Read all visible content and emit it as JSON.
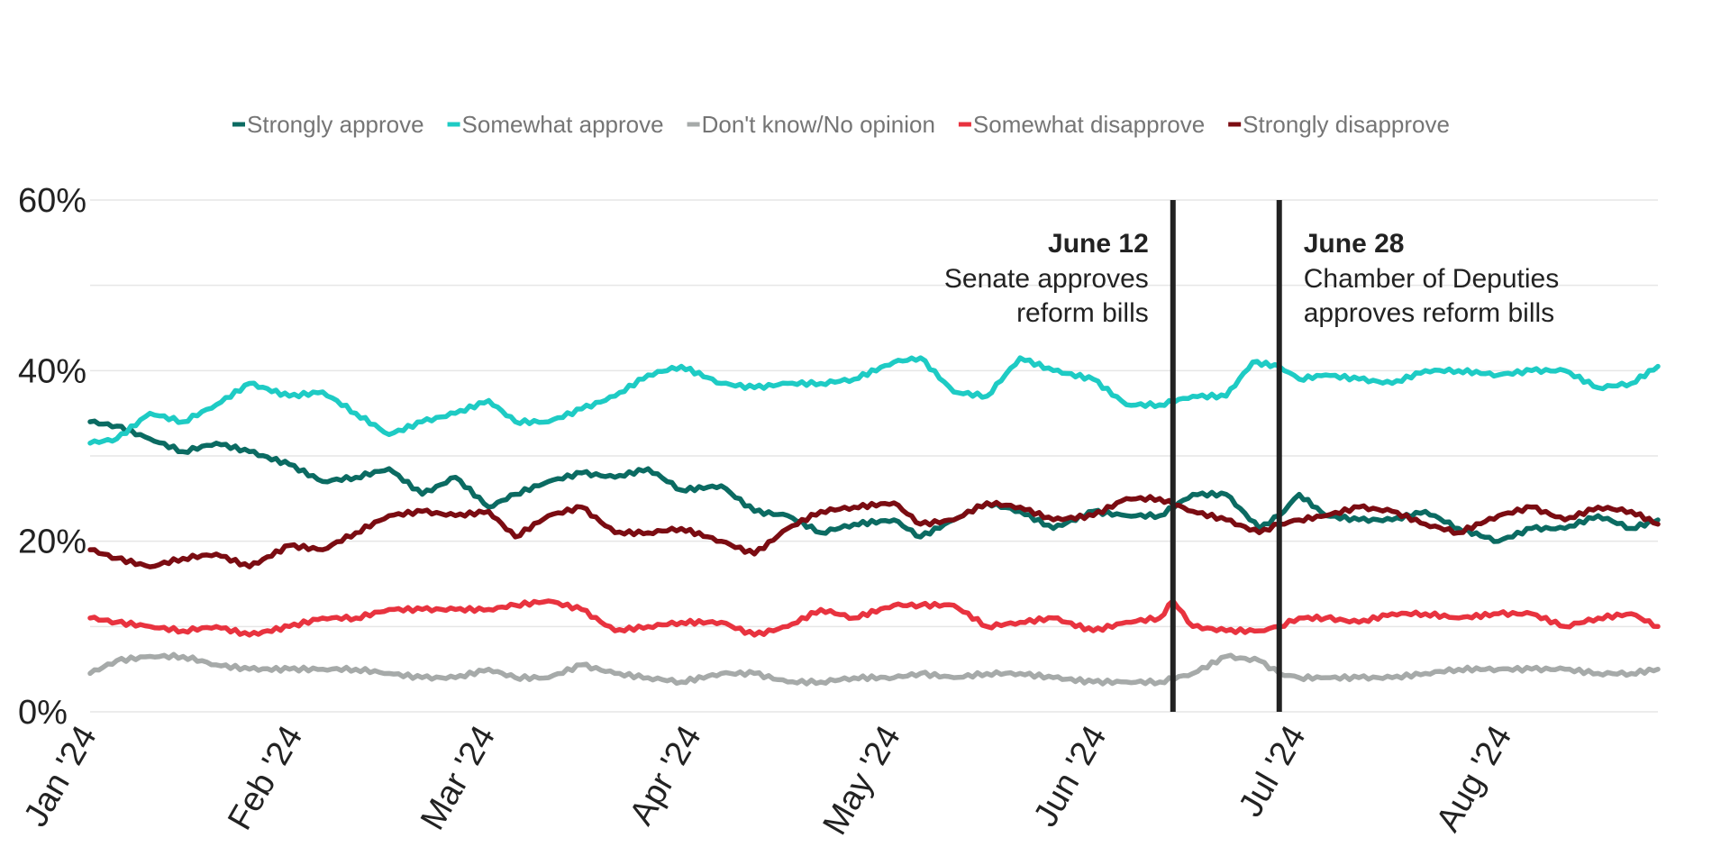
{
  "chart_data": {
    "type": "line",
    "title": "",
    "xlabel": "",
    "ylabel": "",
    "x_domain": [
      "2024-01-01",
      "2024-08-24"
    ],
    "ylim": [
      0,
      60
    ],
    "y_ticks": [
      0,
      20,
      40,
      60
    ],
    "y_tick_labels": [
      "0%",
      "20%",
      "40%",
      "60%"
    ],
    "x_tick_dates": [
      "2024-01-01",
      "2024-02-01",
      "2024-03-01",
      "2024-04-01",
      "2024-05-01",
      "2024-06-01",
      "2024-07-01",
      "2024-08-01"
    ],
    "x_tick_labels": [
      "Jan '24",
      "Feb '24",
      "Mar '24",
      "Apr '24",
      "May '24",
      "Jun '24",
      "Jul '24",
      "Aug '24"
    ],
    "grid": true,
    "legend_position": "top",
    "annotations": [
      {
        "date": "2024-06-12",
        "label": "June 12",
        "lines": [
          "Senate approves",
          "reform bills"
        ],
        "side": "left"
      },
      {
        "date": "2024-06-28",
        "label": "June 28",
        "lines": [
          "Chamber of Deputies",
          "approves reform bills"
        ],
        "side": "right"
      }
    ],
    "series": [
      {
        "name": "Strongly approve",
        "color": "#0b6b62",
        "points": [
          [
            "2024-01-01",
            34
          ],
          [
            "2024-01-05",
            33.5
          ],
          [
            "2024-01-10",
            32
          ],
          [
            "2024-01-15",
            30.5
          ],
          [
            "2024-01-20",
            31.5
          ],
          [
            "2024-01-25",
            30.5
          ],
          [
            "2024-01-31",
            29
          ],
          [
            "2024-02-05",
            27
          ],
          [
            "2024-02-10",
            27.5
          ],
          [
            "2024-02-15",
            28.5
          ],
          [
            "2024-02-20",
            25.5
          ],
          [
            "2024-02-25",
            27.5
          ],
          [
            "2024-03-01",
            24
          ],
          [
            "2024-03-05",
            25.5
          ],
          [
            "2024-03-10",
            27
          ],
          [
            "2024-03-15",
            28
          ],
          [
            "2024-03-20",
            27.5
          ],
          [
            "2024-03-25",
            28.5
          ],
          [
            "2024-03-30",
            26
          ],
          [
            "2024-04-05",
            26.5
          ],
          [
            "2024-04-10",
            23.5
          ],
          [
            "2024-04-15",
            23
          ],
          [
            "2024-04-20",
            21
          ],
          [
            "2024-04-25",
            22
          ],
          [
            "2024-05-01",
            22.5
          ],
          [
            "2024-05-05",
            20.5
          ],
          [
            "2024-05-10",
            22.5
          ],
          [
            "2024-05-15",
            24.5
          ],
          [
            "2024-05-20",
            23.5
          ],
          [
            "2024-05-25",
            21.5
          ],
          [
            "2024-05-31",
            23.5
          ],
          [
            "2024-06-05",
            23
          ],
          [
            "2024-06-10",
            23
          ],
          [
            "2024-06-15",
            25.5
          ],
          [
            "2024-06-20",
            25.5
          ],
          [
            "2024-06-25",
            21.5
          ],
          [
            "2024-06-28",
            23
          ],
          [
            "2024-07-01",
            25.5
          ],
          [
            "2024-07-05",
            23
          ],
          [
            "2024-07-10",
            22.5
          ],
          [
            "2024-07-15",
            22.5
          ],
          [
            "2024-07-20",
            23.5
          ],
          [
            "2024-07-25",
            21.5
          ],
          [
            "2024-07-31",
            20
          ],
          [
            "2024-08-05",
            21.5
          ],
          [
            "2024-08-10",
            21.5
          ],
          [
            "2024-08-15",
            23
          ],
          [
            "2024-08-20",
            21.5
          ],
          [
            "2024-08-24",
            22.5
          ]
        ]
      },
      {
        "name": "Somewhat approve",
        "color": "#1ecbc4",
        "points": [
          [
            "2024-01-01",
            31.5
          ],
          [
            "2024-01-05",
            32
          ],
          [
            "2024-01-10",
            35
          ],
          [
            "2024-01-15",
            34
          ],
          [
            "2024-01-20",
            36
          ],
          [
            "2024-01-25",
            38.5
          ],
          [
            "2024-01-31",
            37
          ],
          [
            "2024-02-05",
            37.5
          ],
          [
            "2024-02-10",
            35
          ],
          [
            "2024-02-15",
            32.5
          ],
          [
            "2024-02-20",
            34
          ],
          [
            "2024-02-25",
            35
          ],
          [
            "2024-03-01",
            36.5
          ],
          [
            "2024-03-05",
            34
          ],
          [
            "2024-03-10",
            34
          ],
          [
            "2024-03-15",
            35.5
          ],
          [
            "2024-03-20",
            37
          ],
          [
            "2024-03-25",
            39.5
          ],
          [
            "2024-03-30",
            40.5
          ],
          [
            "2024-04-05",
            38.5
          ],
          [
            "2024-04-10",
            38
          ],
          [
            "2024-04-15",
            38.5
          ],
          [
            "2024-04-20",
            38.5
          ],
          [
            "2024-04-25",
            39
          ],
          [
            "2024-05-01",
            41
          ],
          [
            "2024-05-05",
            41.5
          ],
          [
            "2024-05-10",
            37.5
          ],
          [
            "2024-05-15",
            37
          ],
          [
            "2024-05-20",
            41.5
          ],
          [
            "2024-05-25",
            40
          ],
          [
            "2024-05-31",
            39
          ],
          [
            "2024-06-05",
            36
          ],
          [
            "2024-06-10",
            36
          ],
          [
            "2024-06-15",
            37
          ],
          [
            "2024-06-20",
            37
          ],
          [
            "2024-06-24",
            41
          ],
          [
            "2024-06-28",
            40.5
          ],
          [
            "2024-07-01",
            39
          ],
          [
            "2024-07-05",
            39.5
          ],
          [
            "2024-07-10",
            39
          ],
          [
            "2024-07-15",
            38.5
          ],
          [
            "2024-07-20",
            40
          ],
          [
            "2024-07-25",
            40
          ],
          [
            "2024-07-31",
            39.5
          ],
          [
            "2024-08-05",
            40
          ],
          [
            "2024-08-10",
            40
          ],
          [
            "2024-08-15",
            38
          ],
          [
            "2024-08-20",
            38.5
          ],
          [
            "2024-08-24",
            40.5
          ]
        ]
      },
      {
        "name": "Don't know/No opinion",
        "color": "#a6aaa9",
        "points": [
          [
            "2024-01-01",
            4.5
          ],
          [
            "2024-01-05",
            6
          ],
          [
            "2024-01-10",
            6.5
          ],
          [
            "2024-01-15",
            6.5
          ],
          [
            "2024-01-20",
            5.5
          ],
          [
            "2024-01-25",
            5
          ],
          [
            "2024-01-31",
            5
          ],
          [
            "2024-02-05",
            5
          ],
          [
            "2024-02-10",
            5
          ],
          [
            "2024-02-15",
            4.5
          ],
          [
            "2024-02-20",
            4
          ],
          [
            "2024-02-25",
            4
          ],
          [
            "2024-03-01",
            5
          ],
          [
            "2024-03-05",
            4
          ],
          [
            "2024-03-10",
            4
          ],
          [
            "2024-03-15",
            5.5
          ],
          [
            "2024-03-20",
            4.5
          ],
          [
            "2024-03-25",
            4
          ],
          [
            "2024-03-30",
            3.5
          ],
          [
            "2024-04-05",
            4.5
          ],
          [
            "2024-04-10",
            4.5
          ],
          [
            "2024-04-15",
            3.5
          ],
          [
            "2024-04-20",
            3.5
          ],
          [
            "2024-04-25",
            4
          ],
          [
            "2024-05-01",
            4
          ],
          [
            "2024-05-05",
            4.5
          ],
          [
            "2024-05-10",
            4
          ],
          [
            "2024-05-15",
            4.5
          ],
          [
            "2024-05-20",
            4.5
          ],
          [
            "2024-05-25",
            4
          ],
          [
            "2024-05-31",
            3.5
          ],
          [
            "2024-06-05",
            3.5
          ],
          [
            "2024-06-10",
            3.5
          ],
          [
            "2024-06-15",
            4.5
          ],
          [
            "2024-06-20",
            6.5
          ],
          [
            "2024-06-25",
            6
          ],
          [
            "2024-06-28",
            4.5
          ],
          [
            "2024-07-01",
            4
          ],
          [
            "2024-07-05",
            4
          ],
          [
            "2024-07-10",
            4
          ],
          [
            "2024-07-15",
            4
          ],
          [
            "2024-07-20",
            4.5
          ],
          [
            "2024-07-25",
            5
          ],
          [
            "2024-07-31",
            5
          ],
          [
            "2024-08-05",
            5
          ],
          [
            "2024-08-10",
            5
          ],
          [
            "2024-08-15",
            4.5
          ],
          [
            "2024-08-20",
            4.5
          ],
          [
            "2024-08-24",
            5
          ]
        ]
      },
      {
        "name": "Somewhat disapprove",
        "color": "#e8333f",
        "points": [
          [
            "2024-01-01",
            11
          ],
          [
            "2024-01-05",
            10.5
          ],
          [
            "2024-01-10",
            10
          ],
          [
            "2024-01-15",
            9.5
          ],
          [
            "2024-01-20",
            10
          ],
          [
            "2024-01-25",
            9
          ],
          [
            "2024-01-31",
            10
          ],
          [
            "2024-02-05",
            11
          ],
          [
            "2024-02-10",
            11
          ],
          [
            "2024-02-15",
            12
          ],
          [
            "2024-02-20",
            12
          ],
          [
            "2024-02-25",
            12
          ],
          [
            "2024-03-01",
            12
          ],
          [
            "2024-03-05",
            12.5
          ],
          [
            "2024-03-10",
            13
          ],
          [
            "2024-03-15",
            12
          ],
          [
            "2024-03-20",
            9.5
          ],
          [
            "2024-03-25",
            10
          ],
          [
            "2024-03-30",
            10.5
          ],
          [
            "2024-04-05",
            10.5
          ],
          [
            "2024-04-10",
            9
          ],
          [
            "2024-04-15",
            10
          ],
          [
            "2024-04-20",
            12
          ],
          [
            "2024-04-25",
            11
          ],
          [
            "2024-05-01",
            12.5
          ],
          [
            "2024-05-05",
            12.5
          ],
          [
            "2024-05-10",
            12.5
          ],
          [
            "2024-05-15",
            10
          ],
          [
            "2024-05-20",
            10.5
          ],
          [
            "2024-05-25",
            11
          ],
          [
            "2024-05-31",
            9.5
          ],
          [
            "2024-06-05",
            10.5
          ],
          [
            "2024-06-10",
            11
          ],
          [
            "2024-06-12",
            13
          ],
          [
            "2024-06-15",
            10
          ],
          [
            "2024-06-20",
            9.5
          ],
          [
            "2024-06-25",
            9.5
          ],
          [
            "2024-06-28",
            10
          ],
          [
            "2024-07-01",
            11
          ],
          [
            "2024-07-05",
            11
          ],
          [
            "2024-07-10",
            10.5
          ],
          [
            "2024-07-15",
            11.5
          ],
          [
            "2024-07-20",
            11.5
          ],
          [
            "2024-07-25",
            11
          ],
          [
            "2024-07-31",
            11.5
          ],
          [
            "2024-08-05",
            11.5
          ],
          [
            "2024-08-10",
            10
          ],
          [
            "2024-08-15",
            11
          ],
          [
            "2024-08-20",
            11.5
          ],
          [
            "2024-08-24",
            10
          ]
        ]
      },
      {
        "name": "Strongly disapprove",
        "color": "#7b0c12",
        "points": [
          [
            "2024-01-01",
            19
          ],
          [
            "2024-01-05",
            18
          ],
          [
            "2024-01-10",
            17
          ],
          [
            "2024-01-15",
            18
          ],
          [
            "2024-01-20",
            18.5
          ],
          [
            "2024-01-25",
            17
          ],
          [
            "2024-01-31",
            19.5
          ],
          [
            "2024-02-05",
            19
          ],
          [
            "2024-02-10",
            21
          ],
          [
            "2024-02-15",
            23
          ],
          [
            "2024-02-20",
            23.5
          ],
          [
            "2024-02-25",
            23
          ],
          [
            "2024-03-01",
            23.5
          ],
          [
            "2024-03-05",
            20.5
          ],
          [
            "2024-03-10",
            23
          ],
          [
            "2024-03-15",
            24
          ],
          [
            "2024-03-20",
            21
          ],
          [
            "2024-03-25",
            21
          ],
          [
            "2024-03-30",
            21.5
          ],
          [
            "2024-04-05",
            20
          ],
          [
            "2024-04-10",
            18.5
          ],
          [
            "2024-04-15",
            21.5
          ],
          [
            "2024-04-20",
            23.5
          ],
          [
            "2024-04-25",
            24
          ],
          [
            "2024-05-01",
            24.5
          ],
          [
            "2024-05-05",
            22
          ],
          [
            "2024-05-10",
            22.5
          ],
          [
            "2024-05-15",
            24.5
          ],
          [
            "2024-05-20",
            24
          ],
          [
            "2024-05-25",
            22.5
          ],
          [
            "2024-05-31",
            23
          ],
          [
            "2024-06-05",
            25
          ],
          [
            "2024-06-10",
            25
          ],
          [
            "2024-06-15",
            23.5
          ],
          [
            "2024-06-20",
            22.5
          ],
          [
            "2024-06-25",
            21
          ],
          [
            "2024-06-28",
            22
          ],
          [
            "2024-07-01",
            22.5
          ],
          [
            "2024-07-05",
            23
          ],
          [
            "2024-07-10",
            24
          ],
          [
            "2024-07-15",
            23.5
          ],
          [
            "2024-07-20",
            22
          ],
          [
            "2024-07-25",
            21
          ],
          [
            "2024-07-31",
            23
          ],
          [
            "2024-08-05",
            24
          ],
          [
            "2024-08-10",
            22.5
          ],
          [
            "2024-08-15",
            24
          ],
          [
            "2024-08-20",
            23.5
          ],
          [
            "2024-08-24",
            22
          ]
        ]
      }
    ]
  }
}
